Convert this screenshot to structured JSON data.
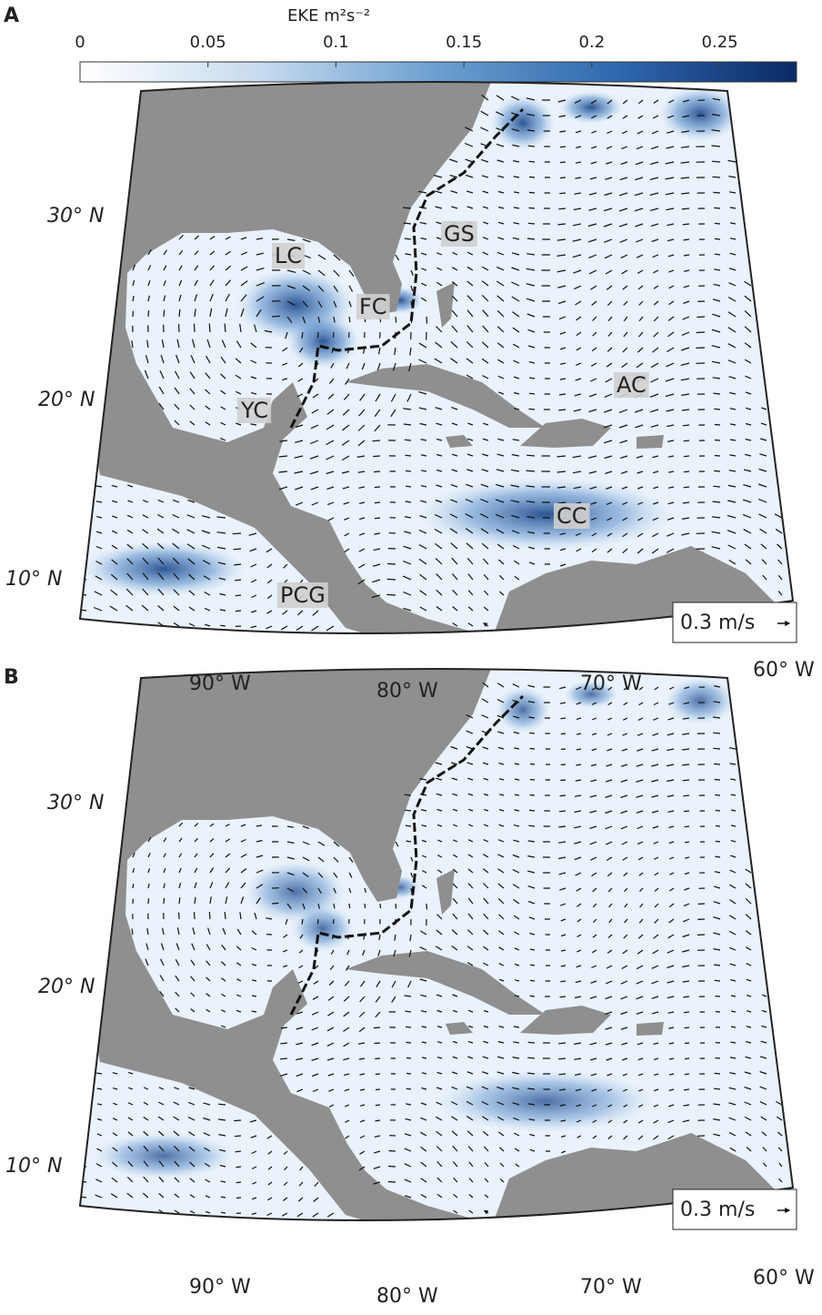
{
  "colorbar": {
    "title": "EKE m²s⁻²",
    "lim": [
      0,
      0.28
    ],
    "ticks": [
      0,
      0.05,
      0.1,
      0.15,
      0.2,
      0.25
    ],
    "colors": [
      "#ffffff",
      "#c6dbef",
      "#6b9fcf",
      "#2f68ae",
      "#0b2a66"
    ]
  },
  "panels": [
    {
      "label": "A",
      "lat_labels": [
        "30° N",
        "20° N",
        "10° N"
      ],
      "lon_labels": [
        "90° W",
        "80° W",
        "70° W",
        "60° W"
      ],
      "regions": [
        "LC",
        "FC",
        "GS",
        "AC",
        "YC",
        "CC",
        "PCG"
      ],
      "scale_label": "0.3 m/s"
    },
    {
      "label": "B",
      "lat_labels": [
        "30° N",
        "20° N",
        "10° N"
      ],
      "lon_labels": [
        "90° W",
        "80° W",
        "70° W",
        "60° W"
      ],
      "scale_label": "0.3 m/s"
    }
  ]
}
